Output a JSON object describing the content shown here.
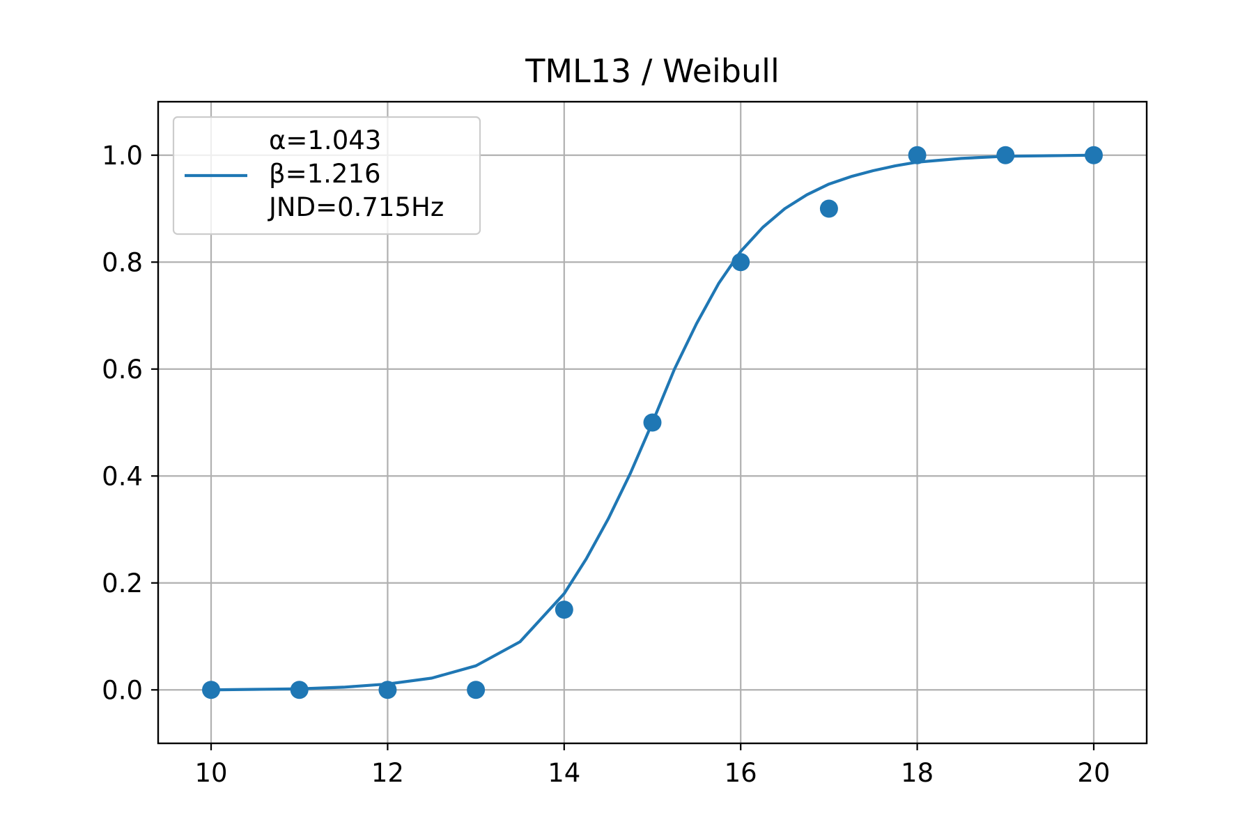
{
  "chart_data": {
    "type": "scatter",
    "title": "TML13 / Weibull",
    "xlabel": "",
    "ylabel": "",
    "xlim": [
      9.4,
      20.6
    ],
    "ylim": [
      -0.1,
      1.1
    ],
    "xticks": [
      10,
      12,
      14,
      16,
      18,
      20
    ],
    "xtick_labels": [
      "10",
      "12",
      "14",
      "16",
      "18",
      "20"
    ],
    "yticks": [
      0.0,
      0.2,
      0.4,
      0.6,
      0.8,
      1.0
    ],
    "ytick_labels": [
      "0.0",
      "0.2",
      "0.4",
      "0.6",
      "0.8",
      "1.0"
    ],
    "grid": true,
    "legend_position": "top-left",
    "color": "#1f77b4",
    "points": {
      "x": [
        10,
        11,
        12,
        13,
        14,
        15,
        16,
        17,
        18,
        19,
        20
      ],
      "y": [
        0.0,
        0.0,
        0.0,
        0.0,
        0.15,
        0.5,
        0.8,
        0.9,
        1.0,
        1.0,
        1.0
      ]
    },
    "fit_curve": {
      "legend_lines": [
        "α=1.043",
        "β=1.216",
        "JND=0.715Hz"
      ],
      "x": [
        10,
        10.5,
        11,
        11.5,
        12,
        12.5,
        13,
        13.5,
        14,
        14.25,
        14.5,
        14.75,
        15,
        15.25,
        15.5,
        15.75,
        16,
        16.25,
        16.5,
        16.75,
        17,
        17.25,
        17.5,
        17.75,
        18,
        18.5,
        19,
        19.5,
        20
      ],
      "y": [
        0.0,
        0.001,
        0.002,
        0.005,
        0.011,
        0.022,
        0.045,
        0.09,
        0.18,
        0.245,
        0.32,
        0.405,
        0.5,
        0.6,
        0.685,
        0.76,
        0.82,
        0.865,
        0.9,
        0.926,
        0.946,
        0.96,
        0.971,
        0.98,
        0.987,
        0.994,
        0.998,
        0.999,
        1.0
      ]
    }
  }
}
